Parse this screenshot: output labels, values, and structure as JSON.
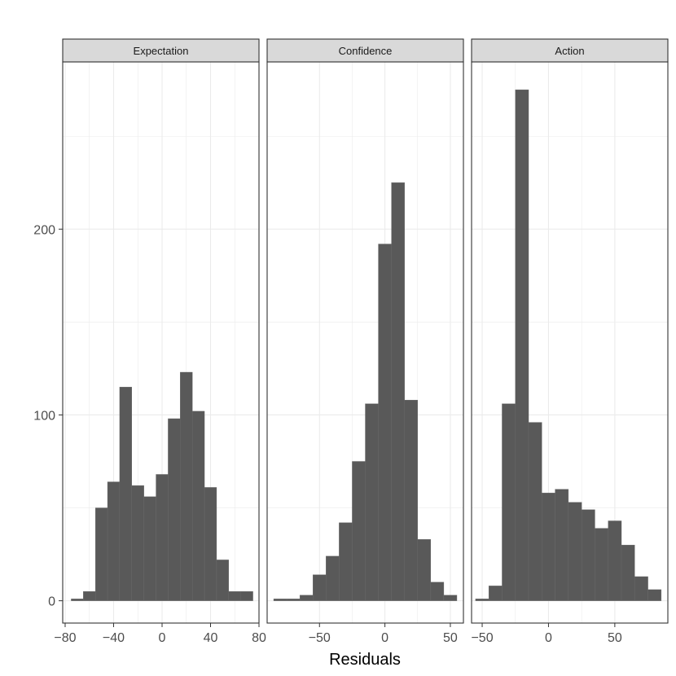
{
  "chart_data": {
    "type": "bar",
    "subtype": "faceted-histogram",
    "xlabel": "Residuals",
    "ylabel": "",
    "ylim": [
      -12,
      290
    ],
    "yticks": [
      0,
      100,
      200
    ],
    "grid": true,
    "colors": {
      "bar": "#595959",
      "strip": "#d9d9d9",
      "grid": "#ebebeb",
      "frame": "#333333"
    },
    "facets": [
      {
        "strip": "Expectation",
        "xlim": [
          -82,
          80
        ],
        "xticks": [
          -80,
          -40,
          0,
          40,
          80
        ],
        "xtick_labels": [
          "−80",
          "−40",
          "0",
          "40",
          "80"
        ],
        "binwidth": 10,
        "bins": [
          {
            "x": -70,
            "count": 1
          },
          {
            "x": -60,
            "count": 5
          },
          {
            "x": -50,
            "count": 50
          },
          {
            "x": -40,
            "count": 64
          },
          {
            "x": -30,
            "count": 115
          },
          {
            "x": -20,
            "count": 62
          },
          {
            "x": -10,
            "count": 56
          },
          {
            "x": 0,
            "count": 68
          },
          {
            "x": 10,
            "count": 98
          },
          {
            "x": 20,
            "count": 123
          },
          {
            "x": 30,
            "count": 102
          },
          {
            "x": 40,
            "count": 61
          },
          {
            "x": 50,
            "count": 22
          },
          {
            "x": 60,
            "count": 5
          },
          {
            "x": 70,
            "count": 5
          }
        ]
      },
      {
        "strip": "Confidence",
        "xlim": [
          -90,
          60
        ],
        "xticks": [
          -50,
          0,
          50
        ],
        "xtick_labels": [
          "−50",
          "0",
          "50"
        ],
        "binwidth": 10,
        "bins": [
          {
            "x": -80,
            "count": 1
          },
          {
            "x": -70,
            "count": 1
          },
          {
            "x": -60,
            "count": 3
          },
          {
            "x": -50,
            "count": 14
          },
          {
            "x": -40,
            "count": 24
          },
          {
            "x": -30,
            "count": 42
          },
          {
            "x": -20,
            "count": 75
          },
          {
            "x": -10,
            "count": 106
          },
          {
            "x": 0,
            "count": 192
          },
          {
            "x": 10,
            "count": 225
          },
          {
            "x": 20,
            "count": 108
          },
          {
            "x": 30,
            "count": 33
          },
          {
            "x": 40,
            "count": 10
          },
          {
            "x": 50,
            "count": 3
          }
        ]
      },
      {
        "strip": "Action",
        "xlim": [
          -58,
          90
        ],
        "xticks": [
          -50,
          0,
          50
        ],
        "xtick_labels": [
          "−50",
          "0",
          "50"
        ],
        "binwidth": 10,
        "bins": [
          {
            "x": -50,
            "count": 1
          },
          {
            "x": -40,
            "count": 8
          },
          {
            "x": -30,
            "count": 106
          },
          {
            "x": -20,
            "count": 275
          },
          {
            "x": -10,
            "count": 96
          },
          {
            "x": 0,
            "count": 58
          },
          {
            "x": 10,
            "count": 60
          },
          {
            "x": 20,
            "count": 53
          },
          {
            "x": 30,
            "count": 49
          },
          {
            "x": 40,
            "count": 39
          },
          {
            "x": 50,
            "count": 43
          },
          {
            "x": 60,
            "count": 30
          },
          {
            "x": 70,
            "count": 13
          },
          {
            "x": 80,
            "count": 6
          }
        ]
      }
    ]
  }
}
